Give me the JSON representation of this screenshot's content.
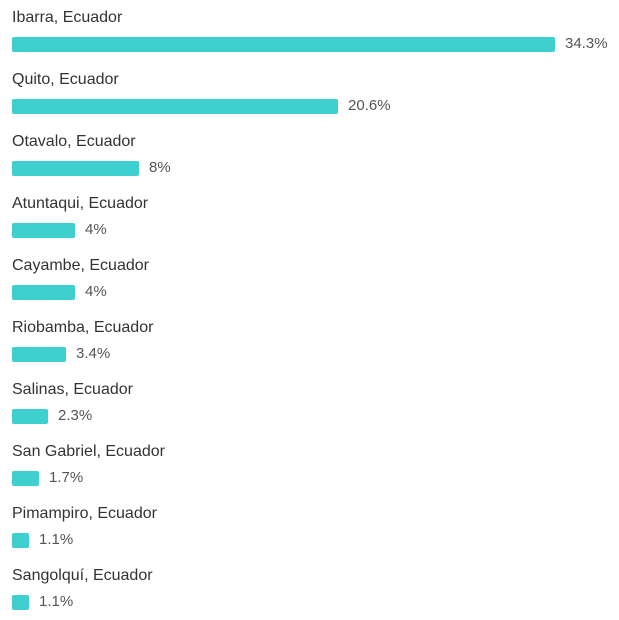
{
  "chart_data": {
    "type": "bar",
    "orientation": "horizontal",
    "categories": [
      "Ibarra, Ecuador",
      "Quito, Ecuador",
      "Otavalo, Ecuador",
      "Atuntaqui, Ecuador",
      "Cayambe, Ecuador",
      "Riobamba, Ecuador",
      "Salinas, Ecuador",
      "San Gabriel, Ecuador",
      "Pimampiro, Ecuador",
      "Sangolquí, Ecuador"
    ],
    "values": [
      34.3,
      20.6,
      8,
      4,
      4,
      3.4,
      2.3,
      1.7,
      1.1,
      1.1
    ],
    "value_labels": [
      "34.3%",
      "20.6%",
      "8%",
      "4%",
      "4%",
      "3.4%",
      "2.3%",
      "1.7%",
      "1.1%",
      "1.1%"
    ],
    "unit": "%",
    "bar_color": "#3ecfcf",
    "grid": false,
    "legend": "none"
  }
}
